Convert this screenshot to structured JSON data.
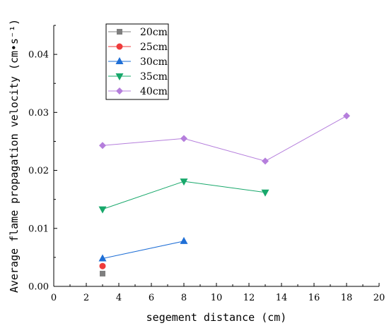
{
  "chart_data": {
    "type": "line",
    "xlabel": "segement distance (cm)",
    "ylabel": "Average flame propagation velocity (cm•s⁻¹)",
    "xlim": [
      0,
      20
    ],
    "ylim": [
      0,
      0.045
    ],
    "x_ticks": [
      "0",
      "2",
      "4",
      "6",
      "8",
      "10",
      "12",
      "14",
      "16",
      "18",
      "20"
    ],
    "y_ticks": [
      "0.00",
      "0.01",
      "0.02",
      "0.03",
      "0.04"
    ],
    "grid": false,
    "legend_position": "top-left",
    "series": [
      {
        "name": "20cm",
        "color": "#7f7f7f",
        "marker": "square",
        "x": [
          3
        ],
        "y": [
          0.0022
        ]
      },
      {
        "name": "25cm",
        "color": "#ef3b3b",
        "marker": "circle",
        "x": [
          3
        ],
        "y": [
          0.0035
        ]
      },
      {
        "name": "30cm",
        "color": "#1f6fd6",
        "marker": "triangle-up",
        "x": [
          3,
          8
        ],
        "y": [
          0.0048,
          0.0078
        ]
      },
      {
        "name": "35cm",
        "color": "#18a86b",
        "marker": "triangle-down",
        "x": [
          3,
          8,
          13
        ],
        "y": [
          0.0133,
          0.0181,
          0.0162
        ]
      },
      {
        "name": "40cm",
        "color": "#b57edc",
        "marker": "diamond",
        "x": [
          3,
          8,
          13,
          18
        ],
        "y": [
          0.0243,
          0.0255,
          0.0216,
          0.0294
        ]
      }
    ]
  }
}
